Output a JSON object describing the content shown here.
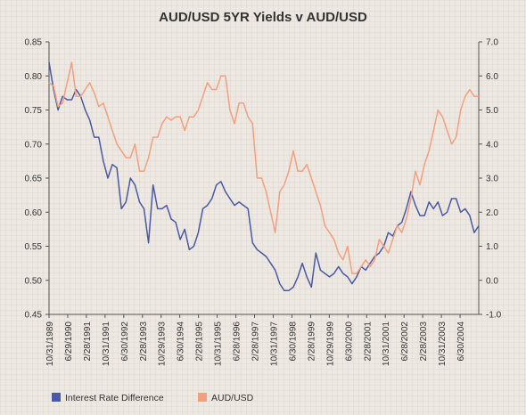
{
  "chart_data": {
    "type": "line",
    "title": "AUD/USD 5YR Yields v AUD/USD",
    "left_axis": {
      "ylim": [
        0.45,
        0.85
      ],
      "ticks": [
        "0.45",
        "0.50",
        "0.55",
        "0.60",
        "0.65",
        "0.70",
        "0.75",
        "0.80",
        "0.85"
      ]
    },
    "right_axis": {
      "ylim": [
        -1.0,
        7.0
      ],
      "ticks": [
        "-1.0",
        "0.0",
        "1.0",
        "2.0",
        "3.0",
        "4.0",
        "5.0",
        "6.0",
        "7.0"
      ]
    },
    "x_ticks": [
      "10/31/1989",
      "6/29/1990",
      "2/28/1991",
      "10/31/1991",
      "6/30/1992",
      "2/28/1993",
      "10/29/1993",
      "6/30/1994",
      "2/28/1995",
      "10/31/1995",
      "6/28/1996",
      "2/28/1997",
      "10/31/1997",
      "6/30/1998",
      "2/28/1999",
      "10/29/1999",
      "6/30/2000",
      "2/28/2001",
      "10/31/2001",
      "6/28/2002",
      "2/28/2003",
      "10/31/2003",
      "6/30/2004"
    ],
    "grid": false,
    "legend_position": "bottom-left",
    "series": [
      {
        "name": "Interest Rate Difference",
        "axis": "right",
        "color": "#4a59a6",
        "values": [
          6.4,
          5.6,
          5.0,
          5.4,
          5.3,
          5.3,
          5.6,
          5.4,
          5.0,
          4.7,
          4.2,
          4.2,
          3.5,
          3.0,
          3.4,
          3.3,
          2.1,
          2.3,
          3.0,
          2.8,
          2.3,
          2.1,
          1.1,
          2.8,
          2.1,
          2.1,
          2.2,
          1.8,
          1.7,
          1.2,
          1.5,
          0.9,
          1.0,
          1.4,
          2.1,
          2.2,
          2.4,
          2.8,
          2.9,
          2.6,
          2.4,
          2.2,
          2.3,
          2.2,
          2.1,
          1.1,
          0.9,
          0.8,
          0.7,
          0.5,
          0.3,
          -0.1,
          -0.3,
          -0.3,
          -0.2,
          0.1,
          0.5,
          0.1,
          -0.2,
          0.8,
          0.3,
          0.2,
          0.1,
          0.2,
          0.4,
          0.2,
          0.1,
          -0.1,
          0.1,
          0.4,
          0.3,
          0.5,
          0.7,
          0.8,
          1.0,
          1.4,
          1.3,
          1.6,
          1.7,
          2.1,
          2.6,
          2.2,
          1.9,
          1.9,
          2.3,
          2.1,
          2.3,
          1.9,
          2.0,
          2.4,
          2.4,
          2.0,
          2.1,
          1.9,
          1.4,
          1.6
        ]
      },
      {
        "name": "AUD/USD",
        "axis": "left",
        "color": "#f2a080",
        "values": [
          0.79,
          0.785,
          0.755,
          0.76,
          0.79,
          0.82,
          0.77,
          0.77,
          0.78,
          0.79,
          0.775,
          0.755,
          0.76,
          0.74,
          0.72,
          0.7,
          0.69,
          0.68,
          0.68,
          0.7,
          0.66,
          0.66,
          0.68,
          0.71,
          0.71,
          0.73,
          0.74,
          0.735,
          0.74,
          0.74,
          0.72,
          0.74,
          0.74,
          0.75,
          0.77,
          0.79,
          0.78,
          0.78,
          0.8,
          0.8,
          0.75,
          0.73,
          0.76,
          0.76,
          0.74,
          0.73,
          0.65,
          0.65,
          0.63,
          0.6,
          0.57,
          0.63,
          0.64,
          0.66,
          0.69,
          0.66,
          0.66,
          0.67,
          0.65,
          0.63,
          0.61,
          0.58,
          0.57,
          0.56,
          0.54,
          0.53,
          0.55,
          0.51,
          0.51,
          0.52,
          0.53,
          0.52,
          0.53,
          0.56,
          0.55,
          0.54,
          0.56,
          0.58,
          0.57,
          0.59,
          0.62,
          0.66,
          0.64,
          0.67,
          0.69,
          0.72,
          0.75,
          0.74,
          0.72,
          0.7,
          0.71,
          0.75,
          0.77,
          0.78,
          0.77,
          0.77
        ]
      }
    ]
  },
  "legend": [
    {
      "label": "Interest Rate Difference",
      "color": "#4a59a6"
    },
    {
      "label": "AUD/USD",
      "color": "#f2a080"
    }
  ]
}
